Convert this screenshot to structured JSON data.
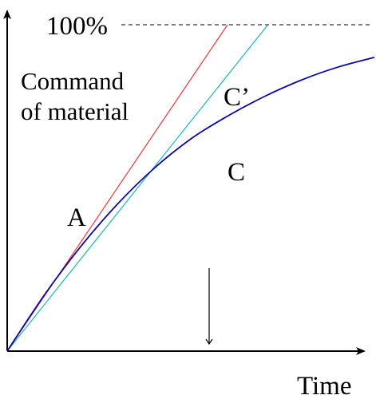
{
  "chart_data": {
    "type": "line",
    "xlabel": "Time",
    "ylabel": "",
    "target_label": "100%",
    "annotation": "Command of material",
    "annotation_lines": [
      "Command",
      "of material"
    ],
    "x_range": [
      0,
      100
    ],
    "y_range": [
      0,
      100
    ],
    "grid": false,
    "marker": {
      "type": "arrow-down",
      "x": 55
    },
    "series": [
      {
        "name": "A",
        "color": "#e8383d",
        "x": [
          0,
          60
        ],
        "y": [
          0,
          100
        ]
      },
      {
        "name": "C’",
        "color": "#1fb5b5",
        "x": [
          0,
          71
        ],
        "y": [
          0,
          100
        ]
      },
      {
        "name": "C",
        "color": "#0a0aa0",
        "x": [
          0,
          10,
          20,
          30,
          40,
          50,
          60,
          70,
          80,
          90,
          100
        ],
        "y": [
          0,
          17,
          32,
          45,
          56,
          65,
          72,
          78,
          83,
          87,
          90
        ]
      }
    ]
  }
}
